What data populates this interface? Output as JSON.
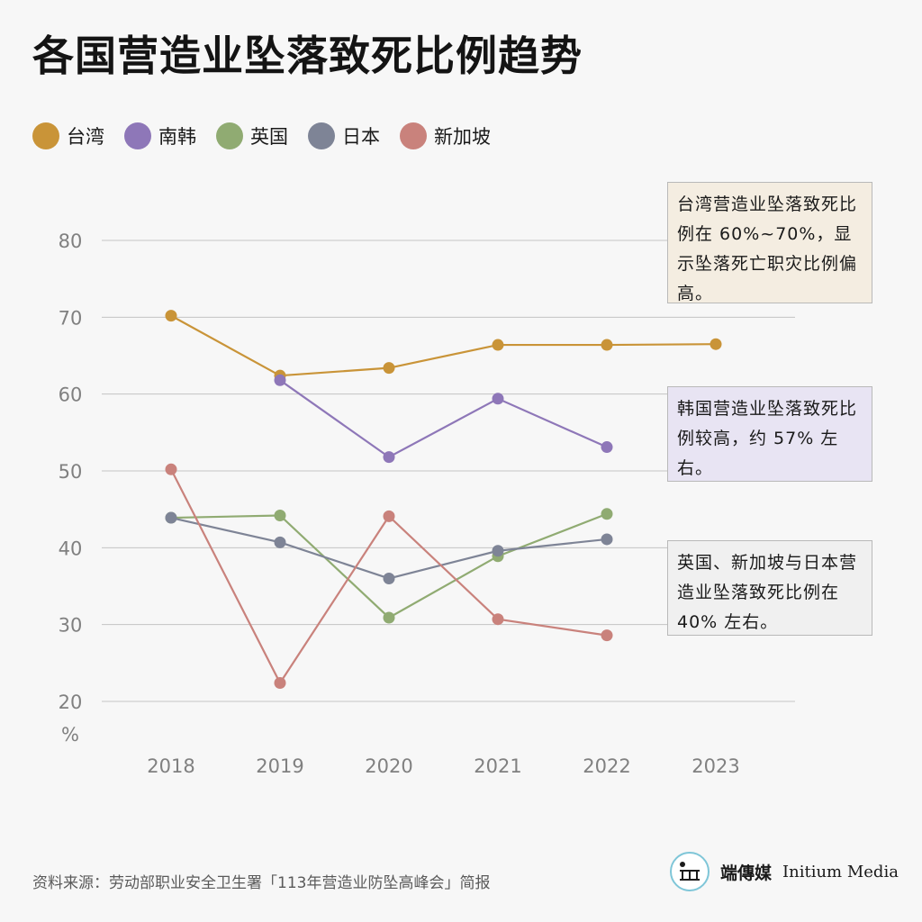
{
  "title": "各国营造业坠落致死比例趋势",
  "chart_data": {
    "type": "line",
    "x": [
      "2018",
      "2019",
      "2020",
      "2021",
      "2022",
      "2023"
    ],
    "series": [
      {
        "name": "台湾",
        "color": "#c99438",
        "values": [
          70.2,
          62.4,
          63.4,
          66.4,
          66.4,
          66.5
        ]
      },
      {
        "name": "南韩",
        "color": "#8e77b8",
        "values": [
          null,
          61.8,
          51.8,
          59.4,
          53.1,
          null
        ]
      },
      {
        "name": "英国",
        "color": "#90ab72",
        "values": [
          43.9,
          44.2,
          30.9,
          38.9,
          44.4,
          null
        ]
      },
      {
        "name": "日本",
        "color": "#7e8496",
        "values": [
          43.9,
          40.7,
          36.0,
          39.6,
          41.1,
          null
        ]
      },
      {
        "name": "新加坡",
        "color": "#c9827c",
        "values": [
          50.2,
          22.4,
          44.1,
          30.7,
          28.6,
          null
        ]
      }
    ],
    "yticks": [
      "80",
      "70",
      "60",
      "50",
      "40",
      "30",
      "20"
    ],
    "ylabel": "%",
    "ylim": [
      20,
      80
    ],
    "grid": true,
    "legend_position": "top-left"
  },
  "notes": [
    {
      "text": "台湾营造业坠落致死比例在 60%~70%，显示坠落死亡职灾比例偏高。",
      "color": "#f4ede1"
    },
    {
      "text": "韩国营造业坠落致死比例较高，约 57% 左右。",
      "color": "#e8e4f3"
    },
    {
      "text": "英国、新加坡与日本营造业坠落致死比例在 40% 左右。",
      "color": "#f0f0f0"
    }
  ],
  "source": "资料来源：劳动部职业安全卫生署「113年营造业防坠高峰会」简报",
  "brand": {
    "cn": "端傳媒",
    "en": "Initium Media"
  }
}
